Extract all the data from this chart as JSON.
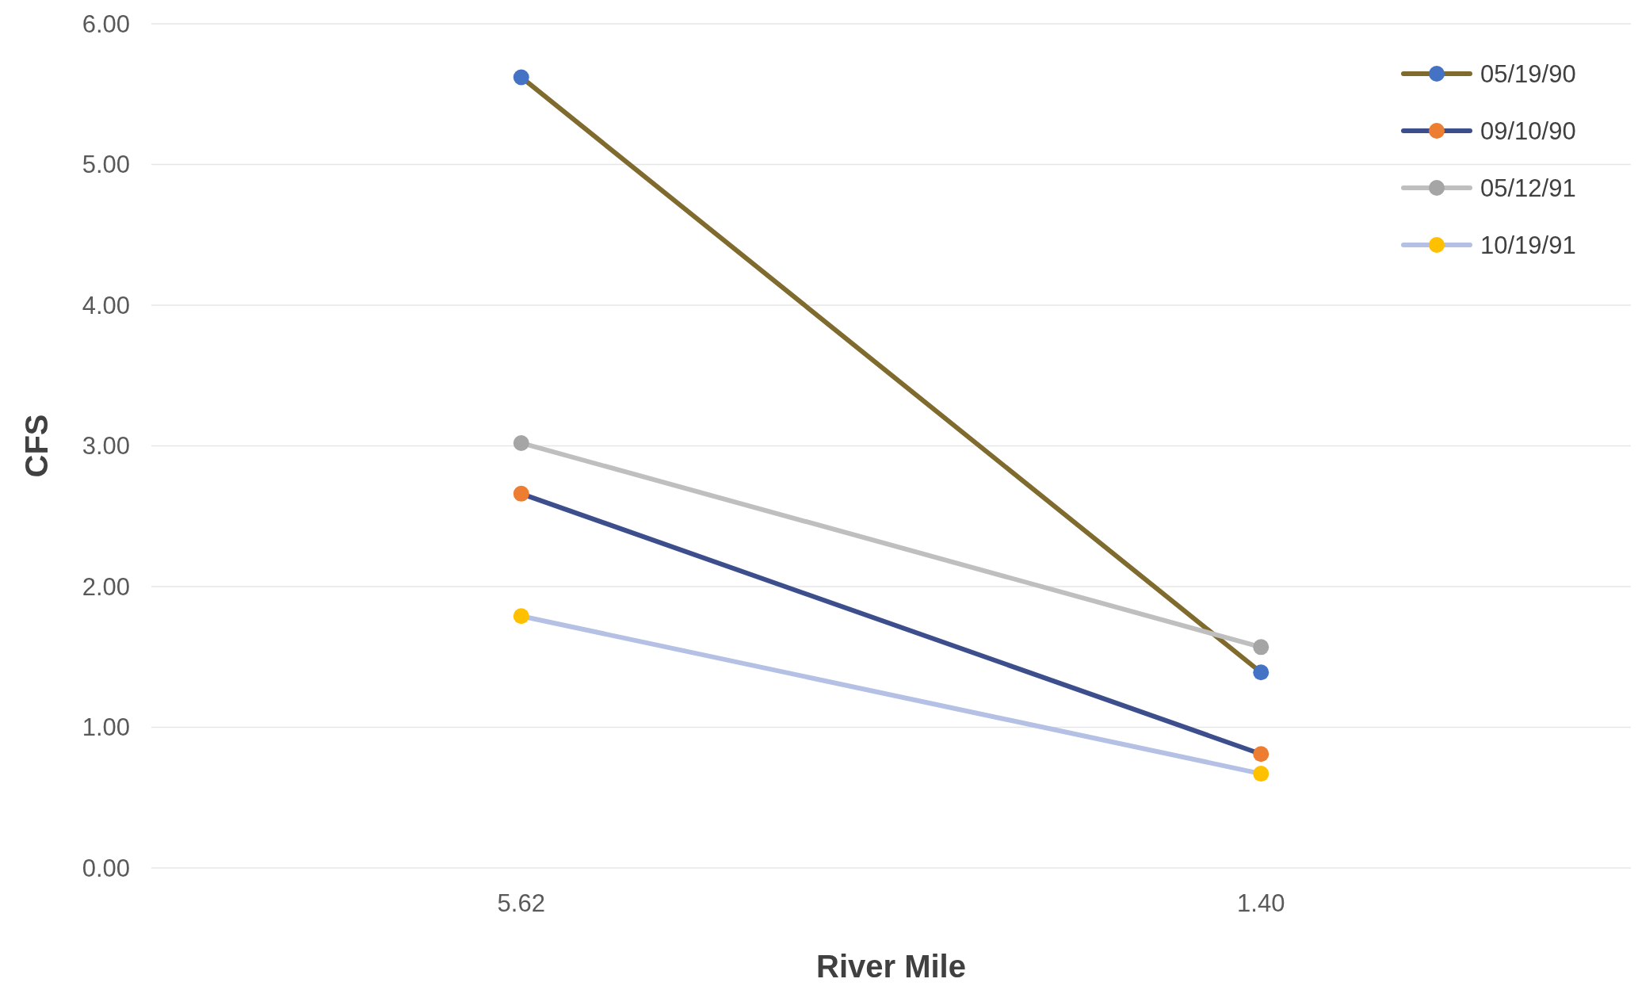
{
  "chart_data": {
    "type": "line",
    "xlabel": "River Mile",
    "ylabel": "CFS",
    "categories": [
      "5.62",
      "1.40"
    ],
    "series": [
      {
        "name": "05/19/90",
        "color": "#806b2e",
        "colors": [
          "#4472c4",
          "#4472c4"
        ],
        "values": [
          5.62,
          1.39
        ]
      },
      {
        "name": "09/10/90",
        "color": "#3c4f8c",
        "colors": [
          "#ed7d31",
          "#ed7d31"
        ],
        "values": [
          2.66,
          0.81
        ]
      },
      {
        "name": "05/12/91",
        "color": "#bfbfbf",
        "colors": [
          "#a5a5a5",
          "#a5a5a5"
        ],
        "values": [
          3.02,
          1.57
        ]
      },
      {
        "name": "10/19/91",
        "color": "#b4c0e4",
        "colors": [
          "#ffc000",
          "#ffc000"
        ],
        "values": [
          1.79,
          0.67
        ]
      }
    ],
    "ylim": [
      0,
      6
    ],
    "yticks": [
      {
        "value": 0,
        "label": "0.00"
      },
      {
        "value": 1,
        "label": "1.00"
      },
      {
        "value": 2,
        "label": "2.00"
      },
      {
        "value": 3,
        "label": "3.00"
      },
      {
        "value": 4,
        "label": "4.00"
      },
      {
        "value": 5,
        "label": "5.00"
      },
      {
        "value": 6,
        "label": "6.00"
      }
    ],
    "grid": "y",
    "legend": "top right",
    "marker": "circle",
    "line_style": "solid"
  }
}
